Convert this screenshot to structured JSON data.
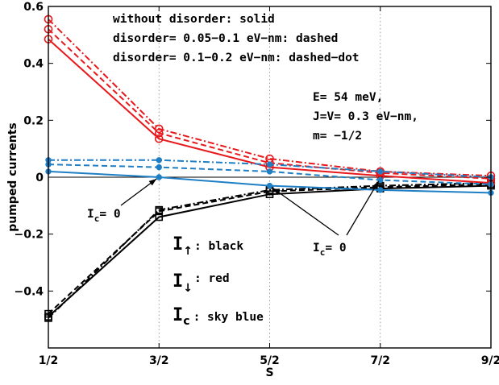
{
  "chart_data": {
    "type": "line",
    "xlabel": "S",
    "ylabel": "pumped currents",
    "x": [
      0.5,
      1.5,
      2.5,
      3.5,
      4.5
    ],
    "x_tick_labels": [
      "1/2",
      "3/2",
      "5/2",
      "7/2",
      "9/2"
    ],
    "ylim": [
      -0.6,
      0.6
    ],
    "y_ticks": [
      -0.4,
      -0.2,
      0,
      0.2,
      0.4,
      0.6
    ],
    "y_tick_labels": [
      "−0.4",
      "−0.2",
      "0",
      "0.2",
      "0.4",
      "0.6"
    ],
    "grid": "vertical-dotted",
    "colors": {
      "black": "#000000",
      "red": "#e8191c",
      "skyblue": "#1f7fc4"
    },
    "series": [
      {
        "color": "black",
        "style": "solid",
        "marker": "square",
        "values": [
          -0.49,
          -0.14,
          -0.06,
          -0.04,
          -0.03
        ]
      },
      {
        "color": "black",
        "style": "dashed",
        "marker": "square",
        "values": [
          -0.48,
          -0.12,
          -0.05,
          -0.035,
          -0.025
        ]
      },
      {
        "color": "black",
        "style": "dashdot",
        "marker": "square",
        "values": [
          -0.495,
          -0.115,
          -0.045,
          -0.03,
          -0.02
        ]
      },
      {
        "color": "red",
        "style": "solid",
        "marker": "circle",
        "values": [
          0.485,
          0.135,
          0.035,
          0.005,
          -0.02
        ]
      },
      {
        "color": "red",
        "style": "dashed",
        "marker": "circle",
        "values": [
          0.52,
          0.155,
          0.05,
          0.015,
          -0.005
        ]
      },
      {
        "color": "red",
        "style": "dashdot",
        "marker": "circle",
        "values": [
          0.555,
          0.17,
          0.065,
          0.02,
          0.005
        ]
      },
      {
        "color": "skyblue",
        "style": "solid",
        "marker": "dot",
        "values": [
          0.02,
          0.0,
          -0.03,
          -0.045,
          -0.055
        ]
      },
      {
        "color": "skyblue",
        "style": "dashed",
        "marker": "dot",
        "values": [
          0.045,
          0.035,
          0.02,
          -0.01,
          -0.025
        ]
      },
      {
        "color": "skyblue",
        "style": "dashdot",
        "marker": "dot",
        "values": [
          0.06,
          0.06,
          0.045,
          0.02,
          0.0
        ]
      }
    ],
    "annotations": {
      "disorder_legend": [
        "without disorder: solid",
        "disorder= 0.05−0.1 eV−nm: dashed",
        "disorder= 0.1−0.2 eV−nm: dashed−dot"
      ],
      "params": [
        "E= 54 meV,",
        "J=V= 0.3 eV−nm,",
        "m= −1/2"
      ],
      "ic_zero_label": "I",
      "ic_zero_sub": "c",
      "ic_zero_eq": "= 0",
      "arrow_points": [
        {
          "x": 1.5,
          "y": 0.0
        },
        {
          "x": 2.5,
          "y": -0.03
        },
        {
          "x": 3.5,
          "y": -0.005
        }
      ],
      "key": [
        {
          "symbol": "I",
          "sub": "↑",
          "label": ": black"
        },
        {
          "symbol": "I",
          "sub": "↓",
          "label": ": red"
        },
        {
          "symbol": "I",
          "sub": "c",
          "label": ": sky blue"
        }
      ]
    }
  }
}
